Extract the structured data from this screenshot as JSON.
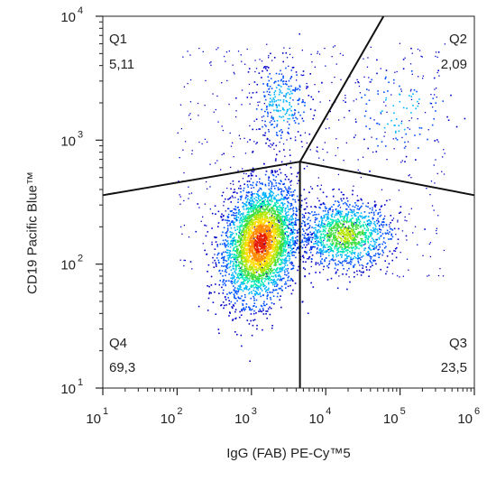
{
  "chart_data": {
    "type": "scatter",
    "subtype": "flow-cytometry-density-dot-plot",
    "xlabel": "IgG (FAB) PE-Cy™5",
    "ylabel": "CD19 Pacific Blue™",
    "x_scale": "log",
    "y_scale": "log",
    "xlim": [
      10,
      1000000
    ],
    "ylim": [
      10,
      10000
    ],
    "x_ticks": [
      {
        "base": "10",
        "exp": "1",
        "value": 10
      },
      {
        "base": "10",
        "exp": "2",
        "value": 100
      },
      {
        "base": "10",
        "exp": "3",
        "value": 1000
      },
      {
        "base": "10",
        "exp": "4",
        "value": 10000
      },
      {
        "base": "10",
        "exp": "5",
        "value": 100000
      },
      {
        "base": "10",
        "exp": "6",
        "value": 1000000
      }
    ],
    "y_ticks": [
      {
        "base": "10",
        "exp": "1",
        "value": 10
      },
      {
        "base": "10",
        "exp": "2",
        "value": 100
      },
      {
        "base": "10",
        "exp": "3",
        "value": 1000
      },
      {
        "base": "10",
        "exp": "4",
        "value": 10000
      }
    ],
    "quadrant_center": [
      4500,
      670
    ],
    "quadrant_lines": [
      {
        "from": [
          10,
          360
        ],
        "to": [
          4500,
          670
        ]
      },
      {
        "from": [
          4500,
          670
        ],
        "to": [
          1000000,
          360
        ]
      },
      {
        "from": [
          4500,
          670
        ],
        "to": [
          60000,
          10000
        ]
      },
      {
        "from": [
          4500,
          670
        ],
        "to": [
          4500,
          10
        ]
      }
    ],
    "quadrants": [
      {
        "name": "Q1",
        "value": "5,11",
        "corner": "top-left"
      },
      {
        "name": "Q2",
        "value": "2,09",
        "corner": "top-right"
      },
      {
        "name": "Q3",
        "value": "23,5",
        "corner": "bottom-right"
      },
      {
        "name": "Q4",
        "value": "69,3",
        "corner": "bottom-left"
      }
    ],
    "populations": [
      {
        "center": [
          1300,
          150
        ],
        "spread_x_decades": 0.25,
        "spread_y_decades": 0.23,
        "share": 0.69,
        "peak_density": "high"
      },
      {
        "center": [
          18000,
          175
        ],
        "spread_x_decades": 0.3,
        "spread_y_decades": 0.13,
        "share": 0.235,
        "peak_density": "medium"
      },
      {
        "center": [
          2500,
          2000
        ],
        "spread_x_decades": 0.2,
        "spread_y_decades": 0.17,
        "share": 0.051,
        "peak_density": "low"
      },
      {
        "center": [
          100000,
          1700
        ],
        "spread_x_decades": 0.35,
        "spread_y_decades": 0.2,
        "share": 0.021,
        "peak_density": "low"
      }
    ],
    "colormap": [
      "#0000c8",
      "#0050ff",
      "#00b4ff",
      "#00e6b4",
      "#3cdc3c",
      "#b4e600",
      "#ffdc00",
      "#ff8c00",
      "#e61e00"
    ],
    "frame_color": "#222222",
    "gate_line_color": "#111111"
  }
}
